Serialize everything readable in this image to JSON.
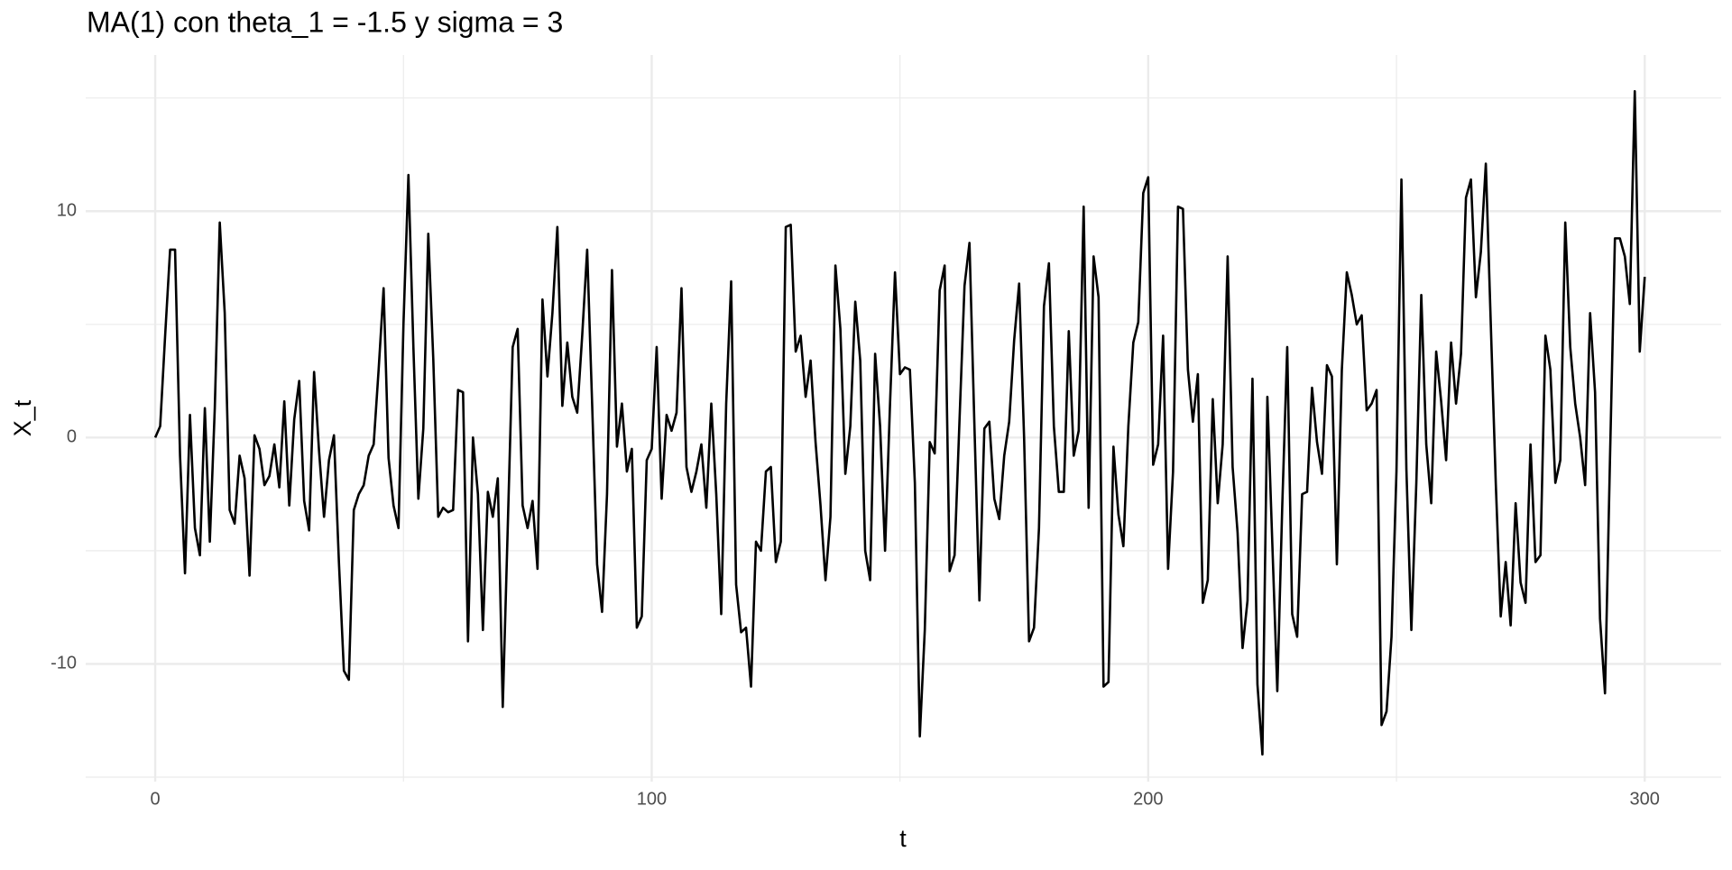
{
  "chart_data": {
    "type": "line",
    "title": "MA(1) con theta_1 = -1.5 y sigma = 3",
    "x_label": "t",
    "y_label": "X_t",
    "x": [
      0,
      1,
      2,
      3,
      4,
      5,
      6,
      7,
      8,
      9,
      10,
      11,
      12,
      13,
      14,
      15,
      16,
      17,
      18,
      19,
      20,
      21,
      22,
      23,
      24,
      25,
      26,
      27,
      28,
      29,
      30,
      31,
      32,
      33,
      34,
      35,
      36,
      37,
      38,
      39,
      40,
      41,
      42,
      43,
      44,
      45,
      46,
      47,
      48,
      49,
      50,
      51,
      52,
      53,
      54,
      55,
      56,
      57,
      58,
      59,
      60,
      61,
      62,
      63,
      64,
      65,
      66,
      67,
      68,
      69,
      70,
      71,
      72,
      73,
      74,
      75,
      76,
      77,
      78,
      79,
      80,
      81,
      82,
      83,
      84,
      85,
      86,
      87,
      88,
      89,
      90,
      91,
      92,
      93,
      94,
      95,
      96,
      97,
      98,
      99,
      100,
      101,
      102,
      103,
      104,
      105,
      106,
      107,
      108,
      109,
      110,
      111,
      112,
      113,
      114,
      115,
      116,
      117,
      118,
      119,
      120,
      121,
      122,
      123,
      124,
      125,
      126,
      127,
      128,
      129,
      130,
      131,
      132,
      133,
      134,
      135,
      136,
      137,
      138,
      139,
      140,
      141,
      142,
      143,
      144,
      145,
      146,
      147,
      148,
      149,
      150,
      151,
      152,
      153,
      154,
      155,
      156,
      157,
      158,
      159,
      160,
      161,
      162,
      163,
      164,
      165,
      166,
      167,
      168,
      169,
      170,
      171,
      172,
      173,
      174,
      175,
      176,
      177,
      178,
      179,
      180,
      181,
      182,
      183,
      184,
      185,
      186,
      187,
      188,
      189,
      190,
      191,
      192,
      193,
      194,
      195,
      196,
      197,
      198,
      199,
      200,
      201,
      202,
      203,
      204,
      205,
      206,
      207,
      208,
      209,
      210,
      211,
      212,
      213,
      214,
      215,
      216,
      217,
      218,
      219,
      220,
      221,
      222,
      223,
      224,
      225,
      226,
      227,
      228,
      229,
      230,
      231,
      232,
      233,
      234,
      235,
      236,
      237,
      238,
      239,
      240,
      241,
      242,
      243,
      244,
      245,
      246,
      247,
      248,
      249,
      250,
      251,
      252,
      253,
      254,
      255,
      256,
      257,
      258,
      259,
      260,
      261,
      262,
      263,
      264,
      265,
      266,
      267,
      268,
      269,
      270,
      271,
      272,
      273,
      274,
      275,
      276,
      277,
      278,
      279,
      280,
      281,
      282,
      283,
      284,
      285,
      286,
      287,
      288,
      289,
      290,
      291,
      292,
      293,
      294,
      295,
      296,
      297,
      298,
      299,
      300
    ],
    "series": [
      {
        "name": "X_t",
        "color": "#000000",
        "values": [
          0,
          0.5,
          4.5,
          8.3,
          8.3,
          -0.8,
          -6,
          1,
          -4,
          -5.2,
          1.3,
          -4.6,
          1.3,
          9.5,
          5.5,
          -3.2,
          -3.8,
          -0.8,
          -1.8,
          -6.1,
          0.1,
          -0.5,
          -2.1,
          -1.7,
          -0.3,
          -2.2,
          1.6,
          -3,
          0.8,
          2.5,
          -2.8,
          -4.1,
          2.9,
          -0.6,
          -3.5,
          -1,
          0.1,
          -5.5,
          -10.3,
          -10.7,
          -3.2,
          -2.5,
          -2.1,
          -0.8,
          -0.3,
          3,
          6.6,
          -0.9,
          -3,
          -4,
          5,
          11.6,
          4,
          -2.7,
          0.4,
          9,
          3.5,
          -3.5,
          -3.1,
          -3.3,
          -3.2,
          2.1,
          2,
          -9,
          0,
          -2.5,
          -8.5,
          -2.4,
          -3.5,
          -1.8,
          -11.9,
          -4,
          4,
          4.8,
          -3,
          -4,
          -2.8,
          -5.8,
          6.1,
          2.7,
          5.5,
          9.3,
          1.4,
          4.2,
          1.8,
          1.1,
          4.5,
          8.3,
          1.5,
          -5.6,
          -7.7,
          -2.5,
          7.4,
          -0.4,
          1.5,
          -1.5,
          -0.5,
          -8.4,
          -7.9,
          -1,
          -0.5,
          4,
          -2.7,
          1,
          0.3,
          1.1,
          6.6,
          -1.3,
          -2.4,
          -1.5,
          -0.3,
          -3.1,
          1.5,
          -2.5,
          -7.8,
          1.5,
          6.9,
          -6.5,
          -8.6,
          -8.4,
          -11,
          -4.6,
          -5,
          -1.5,
          -1.3,
          -5.5,
          -4.6,
          9.3,
          9.4,
          3.8,
          4.5,
          1.8,
          3.4,
          -0.2,
          -3,
          -6.3,
          -3.5,
          7.6,
          4.8,
          -1.6,
          0.5,
          6,
          3.4,
          -5,
          -6.3,
          3.7,
          0.5,
          -5,
          1.5,
          7.3,
          2.8,
          3.1,
          3,
          -2,
          -13.2,
          -8.5,
          -0.2,
          -0.7,
          6.5,
          7.6,
          -5.9,
          -5.2,
          0.8,
          6.7,
          8.6,
          0.5,
          -7.2,
          0.4,
          0.7,
          -2.7,
          -3.6,
          -0.8,
          0.7,
          4.3,
          6.8,
          0,
          -9,
          -8.4,
          -4,
          5.8,
          7.7,
          0.5,
          -2.4,
          -2.4,
          4.7,
          -0.8,
          0.3,
          10.2,
          -3.1,
          8,
          6.2,
          -11,
          -10.8,
          -0.4,
          -3.4,
          -4.8,
          0.5,
          4.2,
          5.1,
          10.8,
          11.5,
          -1.2,
          -0.3,
          4.5,
          -5.8,
          -1.5,
          10.2,
          10.1,
          3,
          0.7,
          2.8,
          -7.3,
          -6.3,
          1.7,
          -2.9,
          -0.3,
          8,
          -1.3,
          -4.2,
          -9.3,
          -7.2,
          2.6,
          -10.9,
          -14,
          1.8,
          -4.7,
          -11.2,
          -3,
          4,
          -7.8,
          -8.8,
          -2.5,
          -2.4,
          2.2,
          -0.2,
          -1.6,
          3.2,
          2.7,
          -5.6,
          3,
          7.3,
          6.3,
          5,
          5.4,
          1.2,
          1.5,
          2.1,
          -12.7,
          -12.1,
          -8.8,
          -1.5,
          11.4,
          -1.4,
          -8.5,
          -2,
          6.3,
          -0.3,
          -2.9,
          3.8,
          1.6,
          -1,
          4.2,
          1.5,
          3.7,
          10.6,
          11.4,
          6.2,
          8.2,
          12.1,
          5,
          -2,
          -7.9,
          -5.5,
          -8.3,
          -2.9,
          -6.4,
          -7.3,
          -0.3,
          -5.5,
          -5.2,
          4.5,
          3,
          -2,
          -1,
          9.5,
          4,
          1.5,
          0,
          -2.1,
          5.5,
          2,
          -8,
          -11.3,
          -1,
          8.8,
          8.8,
          8,
          5.9,
          15.3,
          3.8,
          7.1
        ]
      }
    ],
    "xlim": [
      -14,
      315.4
    ],
    "ylim": [
      -15.2,
      16.9
    ],
    "xticks": [
      0,
      100,
      200,
      300
    ],
    "yticks": [
      -10,
      0,
      10
    ],
    "grid": true
  }
}
